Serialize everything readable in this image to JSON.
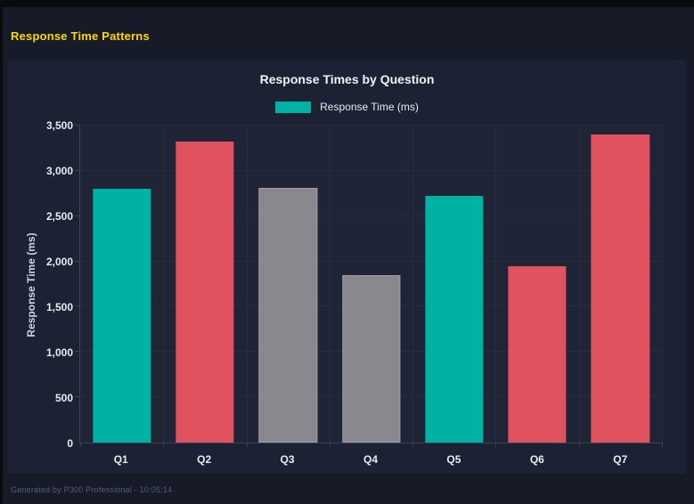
{
  "header": {
    "title": "Response Time Patterns",
    "title_color": "#ffd700"
  },
  "footer": {
    "text": "Generated by P300 Professional - 10:05:14"
  },
  "colors": {
    "page_background": "#171b28",
    "card_background": "#1c2133",
    "grid": "#272d40",
    "teal": "#00b2a3",
    "red": "#e0525f",
    "gray": "#88888e",
    "tick_text": "#e9ebf0"
  },
  "chart_data": {
    "type": "bar",
    "title": "Response Times by Question",
    "legend": {
      "label": "Response Time (ms)",
      "swatch_color": "#00b2a3",
      "position": "top"
    },
    "categories": [
      "Q1",
      "Q2",
      "Q3",
      "Q4",
      "Q5",
      "Q6",
      "Q7"
    ],
    "values": [
      2800,
      3320,
      2810,
      1850,
      2720,
      1950,
      3400
    ],
    "bar_colors": [
      "#00b2a3",
      "#e0525f",
      "#88888e",
      "#88888e",
      "#00b2a3",
      "#e0525f",
      "#e0525f"
    ],
    "bar_border_colors": [
      null,
      null,
      "#9fa0a6",
      "#9fa0a6",
      null,
      null,
      null
    ],
    "xlabel": "",
    "ylabel": "Response Time (ms)",
    "ylim": [
      0,
      3500
    ],
    "ytick_step": 500,
    "ytick_labels": [
      "0",
      "500",
      "1,000",
      "1,500",
      "2,000",
      "2,500",
      "3,000",
      "3,500"
    ],
    "grid": true
  }
}
